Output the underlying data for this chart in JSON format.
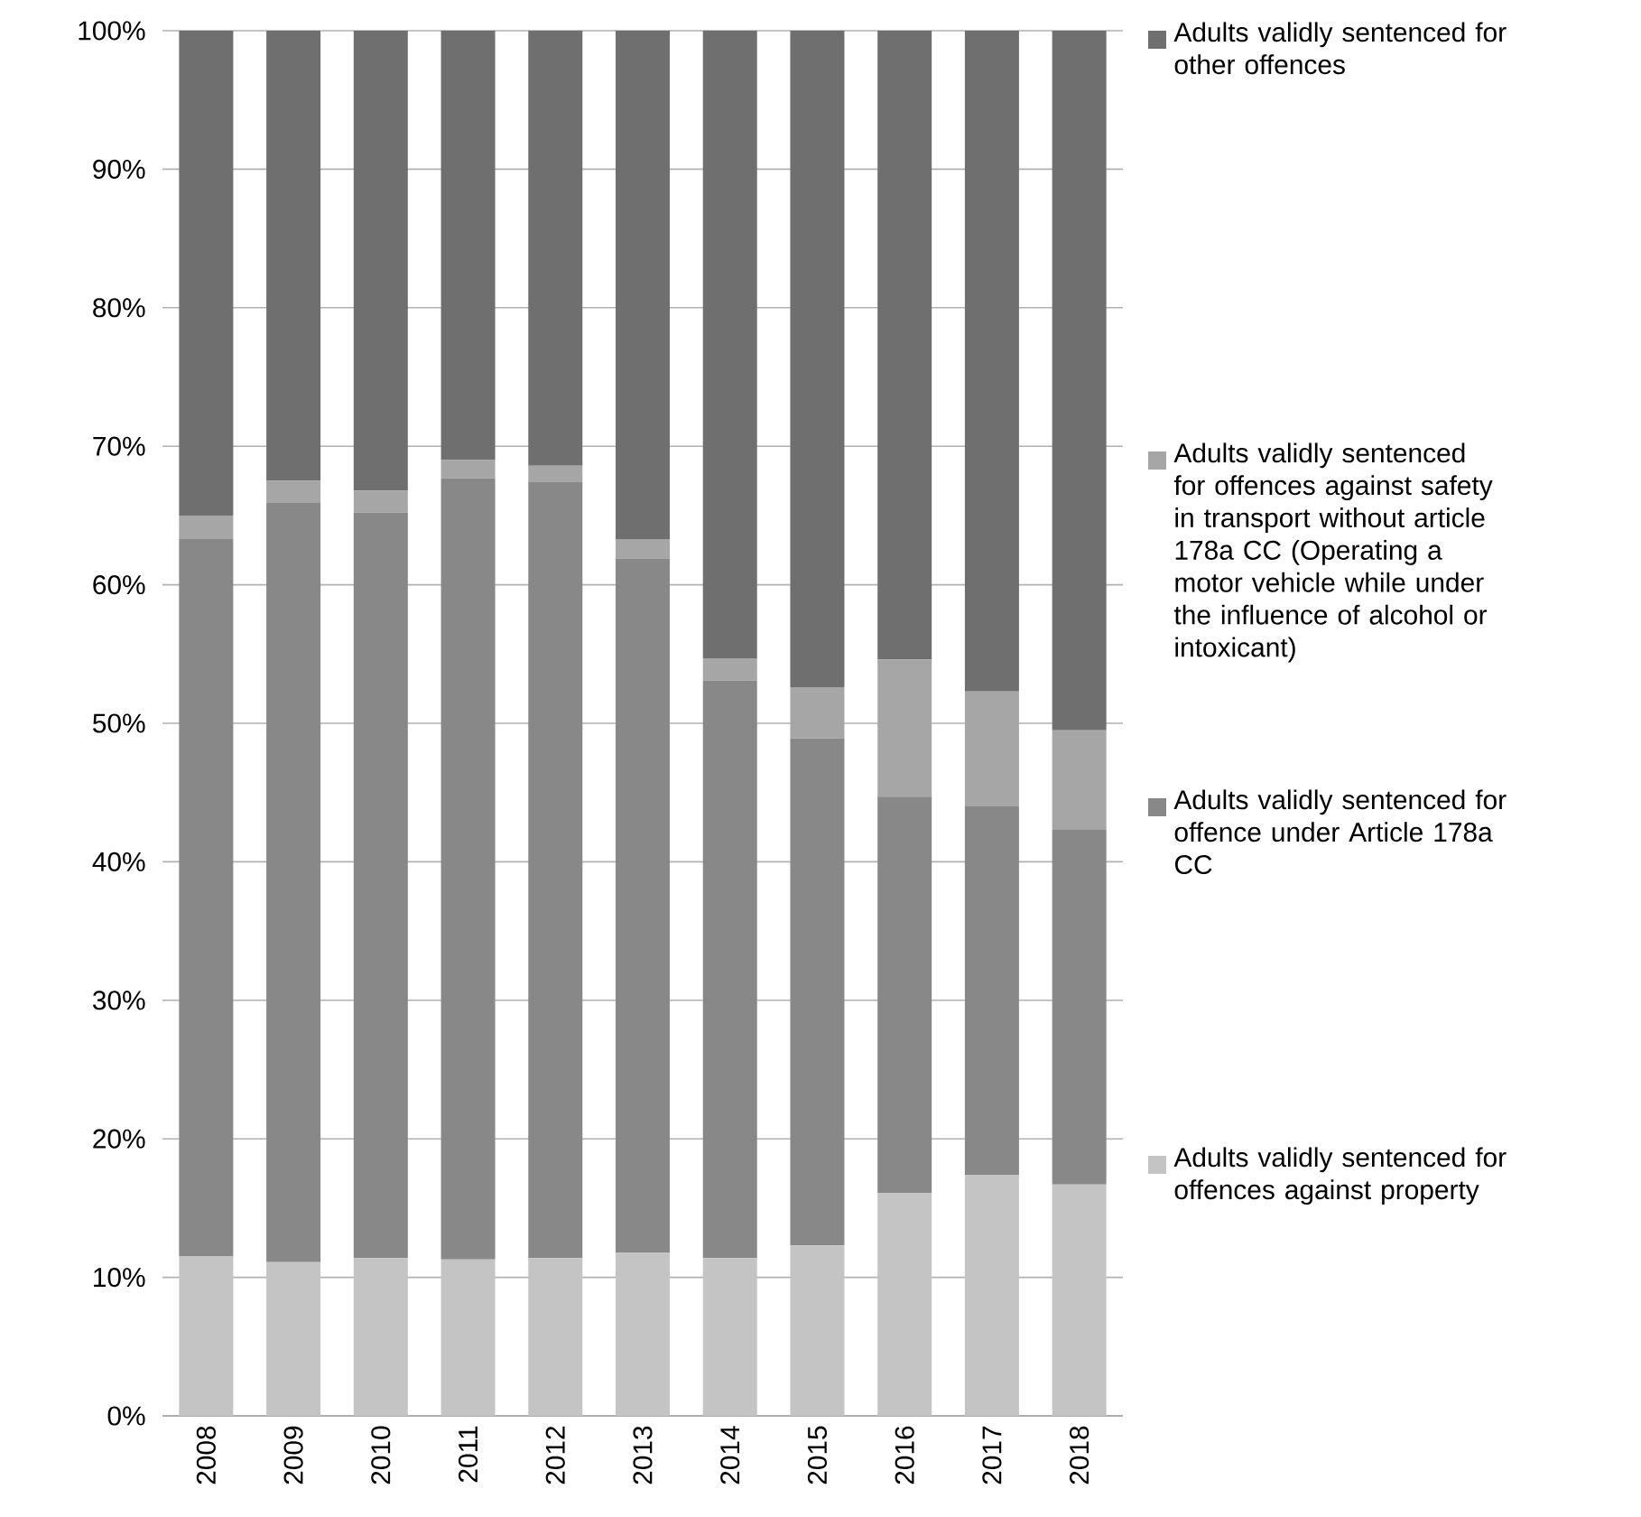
{
  "chart_data": {
    "type": "bar",
    "stacked": true,
    "categories": [
      "2008",
      "2009",
      "2010",
      "2011",
      "2012",
      "2013",
      "2014",
      "2015",
      "2016",
      "2017",
      "2018"
    ],
    "series": [
      {
        "name": "Adults validly sentenced for offences against property",
        "color": "#c4c4c4",
        "values": [
          11.5,
          11.1,
          11.4,
          11.3,
          11.4,
          11.8,
          11.4,
          12.3,
          16.1,
          17.4,
          16.7
        ]
      },
      {
        "name": "Adults validly sentenced for offence under Article 178a CC",
        "color": "#888888",
        "values": [
          51.8,
          54.8,
          53.8,
          56.4,
          56.0,
          50.1,
          41.7,
          36.6,
          28.6,
          26.6,
          25.6
        ]
      },
      {
        "name": "Adults validly sentenced for offences against safety in transport without article 178a CC (Operating a motor vehicle while under the influence of alcohol or intoxicant)",
        "color": "#a6a6a6",
        "values": [
          1.7,
          1.6,
          1.6,
          1.3,
          1.2,
          1.4,
          1.6,
          3.7,
          9.9,
          8.3,
          7.2
        ]
      },
      {
        "name": "Adults validly sentenced for other offences",
        "color": "#6f6f6f",
        "values": [
          35.0,
          32.5,
          33.2,
          31.0,
          31.4,
          36.7,
          45.3,
          47.4,
          45.4,
          47.7,
          50.5
        ]
      }
    ],
    "ylim": [
      0,
      100
    ],
    "yticks": [
      {
        "value": 0,
        "label": "0%"
      },
      {
        "value": 10,
        "label": "10%"
      },
      {
        "value": 20,
        "label": "20%"
      },
      {
        "value": 30,
        "label": "30%"
      },
      {
        "value": 40,
        "label": "40%"
      },
      {
        "value": 50,
        "label": "50%"
      },
      {
        "value": 60,
        "label": "60%"
      },
      {
        "value": 70,
        "label": "70%"
      },
      {
        "value": 80,
        "label": "80%"
      },
      {
        "value": 90,
        "label": "90%"
      },
      {
        "value": 100,
        "label": "100%"
      }
    ],
    "grid": "y",
    "legend": "right"
  }
}
